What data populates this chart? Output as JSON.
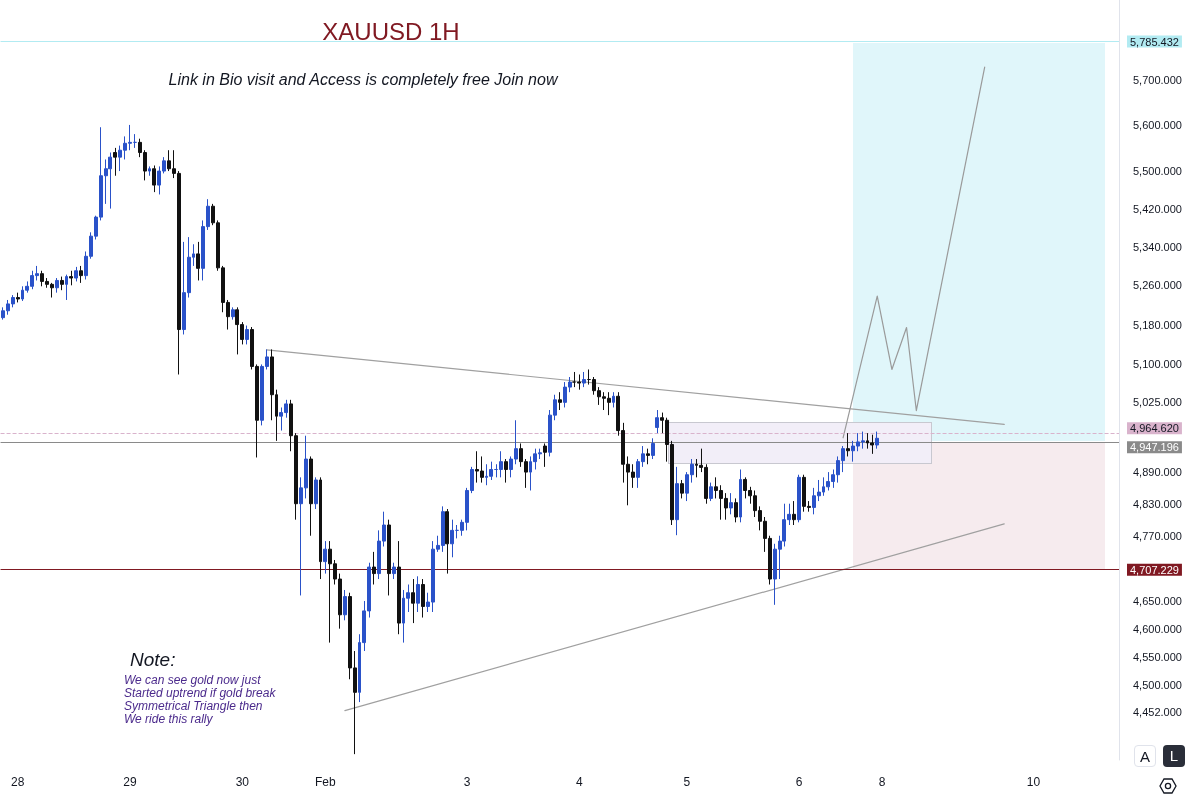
{
  "chart_data": {
    "type": "candlestick",
    "title": "XAUUSD 1H",
    "subtitle": "Link in Bio visit and Access is completely free Join now",
    "annotations": [
      "Note:",
      "We can see gold now just\nStarted uptrend if gold break\nSymmetrical Triangle then\nWe ride this rally",
      "A",
      "L"
    ],
    "categories": [
      null,
      null,
      null,
      "28",
      null,
      null,
      null,
      null,
      null,
      null,
      null,
      null,
      null,
      null,
      null,
      null,
      null,
      null,
      null,
      null,
      null,
      null,
      null,
      null,
      null,
      null,
      "29",
      null,
      null,
      null,
      null,
      null,
      null,
      null,
      null,
      null,
      null,
      null,
      null,
      null,
      null,
      null,
      null,
      null,
      null,
      null,
      null,
      null,
      null,
      "30",
      null,
      null,
      null,
      null,
      null,
      null,
      null,
      null,
      null,
      null,
      null,
      null,
      null,
      null,
      null,
      null,
      "Feb",
      null,
      null,
      null,
      null,
      null,
      null,
      null,
      null,
      null,
      null,
      null,
      null,
      null,
      null,
      null,
      null,
      null,
      null,
      null,
      null,
      null,
      null,
      null,
      null,
      null,
      null,
      null,
      null,
      "3",
      null,
      null,
      null,
      null,
      null,
      null,
      null,
      null,
      null,
      null,
      null,
      null,
      null,
      null,
      null,
      null,
      null,
      null,
      null,
      null,
      null,
      null,
      "4",
      null,
      null,
      null,
      null,
      null,
      null,
      null,
      null,
      null,
      null,
      null,
      null,
      null,
      null,
      null,
      null,
      null,
      null,
      null,
      null,
      null,
      "5",
      null,
      null,
      null,
      null,
      null,
      null,
      null,
      null,
      null,
      null,
      null,
      null,
      null,
      null,
      null,
      null,
      null,
      null,
      null,
      null,
      null,
      null,
      "6",
      null,
      null,
      null,
      null,
      null,
      null,
      null,
      null,
      null,
      null,
      null,
      null,
      null,
      null,
      null,
      null,
      "8",
      null,
      null,
      null,
      null,
      null,
      null,
      null,
      null,
      null,
      null,
      null,
      null,
      null,
      null,
      null,
      null,
      null,
      null,
      null,
      null,
      null,
      null,
      null,
      null,
      null,
      null,
      null,
      null,
      null,
      null,
      "10",
      null,
      null,
      null,
      null,
      null,
      null,
      null,
      null,
      null,
      null,
      null,
      null,
      null,
      null,
      null,
      null,
      null
    ],
    "ylim": [
      4370,
      5880
    ],
    "yticks": [
      {
        "value": 5700,
        "label": "5,700.000"
      },
      {
        "value": 5600,
        "label": "5,600.000"
      },
      {
        "value": 5500,
        "label": "5,500.000"
      },
      {
        "value": 5420,
        "label": "5,420.000"
      },
      {
        "value": 5340,
        "label": "5,340.000"
      },
      {
        "value": 5260,
        "label": "5,260.000"
      },
      {
        "value": 5180,
        "label": "5,180.000"
      },
      {
        "value": 5100,
        "label": "5,100.000"
      },
      {
        "value": 5025,
        "label": "5,025.000"
      },
      {
        "value": 4890,
        "label": "4,890.000"
      },
      {
        "value": 4830,
        "label": "4,830.000"
      },
      {
        "value": 4770,
        "label": "4,770.000"
      },
      {
        "value": 4650,
        "label": "4,650.000"
      },
      {
        "value": 4600,
        "label": "4,600.000"
      },
      {
        "value": 4550,
        "label": "4,550.000"
      },
      {
        "value": 4500,
        "label": "4,500.000"
      },
      {
        "value": 4452,
        "label": "4,452.000"
      }
    ],
    "log": "y",
    "grid": false,
    "marker": "none",
    "line_style": "solid",
    "ref_lines": [
      {
        "axis": "y",
        "value": 5785.432,
        "label": "5,785.432",
        "color": "#b2ebf2"
      },
      {
        "axis": "y",
        "value": 4964.62,
        "label": "4,964.620",
        "color": "#d9b3cc",
        "line_style": "dashed"
      },
      {
        "axis": "y",
        "value": 4947.196,
        "label": "4,947.196",
        "color": "#8a8a8a"
      },
      {
        "axis": "y",
        "value": 4707.229,
        "label": "4,707.229",
        "color": "#801922"
      }
    ],
    "series": [
      {
        "type": "line",
        "color": "#a0a0a0",
        "values": [
          null,
          null,
          null,
          null,
          null,
          null,
          null,
          null,
          null,
          null,
          null,
          null,
          null,
          null,
          null,
          null,
          null,
          null,
          null,
          null,
          null,
          null,
          null,
          null,
          null,
          null,
          null,
          null,
          null,
          null,
          null,
          null,
          null,
          null,
          null,
          null,
          null,
          null,
          null,
          null,
          null,
          null,
          null,
          null,
          null,
          null,
          null,
          null,
          null,
          null,
          null,
          null,
          null,
          null,
          5129,
          null,
          null,
          null,
          null,
          null,
          null,
          null,
          null,
          null,
          null,
          null,
          null,
          null,
          null,
          null,
          null,
          null,
          null,
          null,
          null,
          null,
          null,
          null,
          null,
          null,
          null,
          null,
          null,
          null,
          null,
          null,
          null,
          null,
          null,
          null,
          null,
          null,
          null,
          null,
          null,
          null,
          null,
          null,
          null,
          null,
          null,
          null,
          null,
          null,
          null,
          null,
          null,
          null,
          null,
          null,
          null,
          null,
          null,
          null,
          null,
          null,
          null,
          null,
          null,
          null,
          null,
          null,
          null,
          null,
          null,
          null,
          null,
          null,
          null,
          null,
          null,
          null,
          null,
          null,
          null,
          null,
          null,
          null,
          null,
          null,
          null,
          null,
          null,
          null,
          null,
          null,
          null,
          null,
          null,
          null,
          null,
          null,
          null,
          null,
          null,
          null,
          null,
          null,
          null,
          null,
          null,
          null,
          null,
          null,
          null,
          null,
          null,
          null,
          null,
          null,
          null,
          null,
          null,
          null,
          null,
          null,
          null,
          null,
          null,
          null,
          null,
          null,
          null,
          null,
          null,
          null,
          null,
          null,
          null,
          null,
          null,
          null,
          null,
          null,
          null,
          null,
          null,
          null,
          null,
          null,
          null,
          null,
          null,
          null,
          null,
          4982,
          null,
          null,
          null,
          null,
          null,
          null,
          null,
          null,
          null,
          null,
          null,
          null,
          null,
          null,
          null,
          null,
          null,
          null,
          null,
          null,
          null,
          null,
          null
        ]
      },
      {
        "type": "line",
        "color": "#a0a0a0",
        "values": [
          null,
          null,
          null,
          null,
          null,
          null,
          null,
          null,
          null,
          null,
          null,
          null,
          null,
          null,
          null,
          null,
          null,
          null,
          null,
          null,
          null,
          null,
          null,
          null,
          null,
          null,
          null,
          null,
          null,
          null,
          null,
          null,
          null,
          null,
          null,
          null,
          null,
          null,
          null,
          null,
          null,
          null,
          null,
          null,
          null,
          null,
          null,
          null,
          null,
          null,
          null,
          null,
          null,
          null,
          null,
          null,
          null,
          null,
          null,
          null,
          null,
          null,
          null,
          null,
          null,
          null,
          null,
          null,
          null,
          null,
          4455,
          null,
          null,
          null,
          null,
          null,
          null,
          null,
          null,
          null,
          null,
          null,
          null,
          null,
          null,
          null,
          null,
          null,
          null,
          null,
          null,
          null,
          null,
          null,
          null,
          null,
          null,
          null,
          null,
          null,
          null,
          null,
          null,
          null,
          null,
          null,
          null,
          null,
          null,
          null,
          null,
          null,
          null,
          null,
          null,
          null,
          null,
          null,
          null,
          null,
          null,
          null,
          null,
          null,
          null,
          null,
          null,
          null,
          null,
          null,
          null,
          null,
          null,
          null,
          null,
          null,
          null,
          null,
          null,
          null,
          null,
          null,
          null,
          null,
          null,
          null,
          null,
          null,
          null,
          null,
          null,
          null,
          null,
          null,
          null,
          null,
          null,
          null,
          null,
          null,
          null,
          null,
          null,
          null,
          null,
          null,
          null,
          null,
          null,
          null,
          null,
          null,
          null,
          null,
          null,
          null,
          null,
          null,
          null,
          null,
          null,
          null,
          null,
          null,
          null,
          null,
          null,
          null,
          null,
          null,
          null,
          null,
          null,
          null,
          null,
          null,
          null,
          null,
          null,
          null,
          null,
          null,
          null,
          null,
          null,
          4792,
          null,
          null,
          null,
          null,
          null,
          null,
          null,
          null,
          null,
          null,
          null,
          null,
          null,
          null,
          null,
          null,
          null,
          null,
          null,
          null,
          null,
          null,
          null
        ]
      },
      {
        "type": "line",
        "color": "#9a9a9a",
        "values": [
          null,
          null,
          null,
          null,
          null,
          null,
          null,
          null,
          null,
          null,
          null,
          null,
          null,
          null,
          null,
          null,
          null,
          null,
          null,
          null,
          null,
          null,
          null,
          null,
          null,
          null,
          null,
          null,
          null,
          null,
          null,
          null,
          null,
          null,
          null,
          null,
          null,
          null,
          null,
          null,
          null,
          null,
          null,
          null,
          null,
          null,
          null,
          null,
          null,
          null,
          null,
          null,
          null,
          null,
          null,
          null,
          null,
          null,
          null,
          null,
          null,
          null,
          null,
          null,
          null,
          null,
          null,
          null,
          null,
          null,
          null,
          null,
          null,
          null,
          null,
          null,
          null,
          null,
          null,
          null,
          null,
          null,
          null,
          null,
          null,
          null,
          null,
          null,
          null,
          null,
          null,
          null,
          null,
          null,
          null,
          null,
          null,
          null,
          null,
          null,
          null,
          null,
          null,
          null,
          null,
          null,
          null,
          null,
          null,
          null,
          null,
          null,
          null,
          null,
          null,
          null,
          null,
          null,
          null,
          null,
          null,
          null,
          null,
          null,
          null,
          null,
          null,
          null,
          null,
          null,
          null,
          null,
          null,
          null,
          null,
          null,
          null,
          null,
          null,
          null,
          null,
          null,
          null,
          null,
          null,
          null,
          null,
          null,
          null,
          null,
          null,
          null,
          null,
          null,
          null,
          null,
          null,
          null,
          null,
          null,
          null,
          null,
          null,
          null,
          null,
          null,
          null,
          null,
          null,
          null,
          null,
          null,
          4956,
          null,
          null,
          null,
          null,
          null,
          null,
          5238,
          null,
          null,
          5090,
          null,
          null,
          5174,
          null,
          5009,
          null,
          null,
          null,
          null,
          null,
          null,
          null,
          null,
          null,
          null,
          null,
          null,
          null,
          5728,
          null,
          null,
          null,
          null,
          null,
          null,
          null,
          null,
          null,
          null,
          null,
          null,
          null,
          null,
          null,
          null,
          null,
          null,
          null,
          null,
          null,
          null,
          null,
          null,
          null,
          null,
          null
        ]
      },
      {
        "type": "candlestick",
        "ohlc": [
          [
            5194,
            5215,
            5190,
            5208
          ],
          [
            5208,
            5230,
            5200,
            5222
          ],
          [
            5222,
            5240,
            5215,
            5235
          ],
          [
            5235,
            5245,
            5225,
            5232
          ],
          [
            5232,
            5258,
            5228,
            5250
          ],
          [
            5250,
            5268,
            5245,
            5258
          ],
          [
            5258,
            5290,
            5252,
            5280
          ],
          [
            5280,
            5300,
            5270,
            5284
          ],
          [
            5284,
            5290,
            5258,
            5268
          ],
          [
            5268,
            5275,
            5255,
            5262
          ],
          [
            5262,
            5265,
            5235,
            5255
          ],
          [
            5255,
            5275,
            5245,
            5270
          ],
          [
            5270,
            5278,
            5250,
            5262
          ],
          [
            5262,
            5282,
            5230,
            5278
          ],
          [
            5278,
            5290,
            5260,
            5275
          ],
          [
            5275,
            5298,
            5268,
            5290
          ],
          [
            5290,
            5300,
            5265,
            5280
          ],
          [
            5280,
            5330,
            5272,
            5320
          ],
          [
            5320,
            5370,
            5315,
            5362
          ],
          [
            5362,
            5405,
            5355,
            5402
          ],
          [
            5402,
            5595,
            5395,
            5490
          ],
          [
            5490,
            5525,
            5430,
            5505
          ],
          [
            5505,
            5540,
            5420,
            5530
          ],
          [
            5540,
            5550,
            5490,
            5530
          ],
          [
            5530,
            5555,
            5500,
            5545
          ],
          [
            5545,
            5575,
            5525,
            5560
          ],
          [
            5560,
            5600,
            5545,
            5562
          ],
          [
            5562,
            5580,
            5550,
            5562
          ],
          [
            5562,
            5570,
            5530,
            5540
          ],
          [
            5540,
            5545,
            5480,
            5500
          ],
          [
            5500,
            5510,
            5490,
            5505
          ],
          [
            5505,
            5512,
            5455,
            5470
          ],
          [
            5470,
            5510,
            5450,
            5500
          ],
          [
            5500,
            5530,
            5495,
            5522
          ],
          [
            5522,
            5545,
            5500,
            5505
          ],
          [
            5505,
            5545,
            5485,
            5495
          ],
          [
            5495,
            5500,
            5080,
            5170
          ],
          [
            5170,
            5350,
            5160,
            5245
          ],
          [
            5245,
            5360,
            5235,
            5318
          ],
          [
            5318,
            5345,
            5300,
            5325
          ],
          [
            5325,
            5350,
            5270,
            5295
          ],
          [
            5295,
            5395,
            5270,
            5382
          ],
          [
            5382,
            5440,
            5375,
            5425
          ],
          [
            5425,
            5430,
            5385,
            5390
          ],
          [
            5390,
            5395,
            5290,
            5296
          ],
          [
            5296,
            5300,
            5205,
            5225
          ],
          [
            5225,
            5230,
            5170,
            5196
          ],
          [
            5196,
            5215,
            5190,
            5210
          ],
          [
            5210,
            5215,
            5120,
            5180
          ],
          [
            5180,
            5185,
            5140,
            5150
          ],
          [
            5150,
            5178,
            5140,
            5170
          ],
          [
            5170,
            5175,
            5090,
            5096
          ],
          [
            5096,
            5100,
            4918,
            4990
          ],
          [
            4990,
            5100,
            4980,
            5096
          ],
          [
            5096,
            5130,
            5090,
            5115
          ],
          [
            5115,
            5130,
            4990,
            5040
          ],
          [
            5040,
            5050,
            4950,
            4998
          ],
          [
            4998,
            5015,
            4970,
            5005
          ],
          [
            5005,
            5030,
            4995,
            5022
          ],
          [
            5022,
            5030,
            4930,
            4960
          ],
          [
            4960,
            4965,
            4800,
            4830
          ],
          [
            4830,
            4880,
            4660,
            4860
          ],
          [
            4860,
            4960,
            4840,
            4915
          ],
          [
            4915,
            4920,
            4770,
            4830
          ],
          [
            4830,
            4880,
            4820,
            4875
          ],
          [
            4875,
            4880,
            4690,
            4722
          ],
          [
            4722,
            4760,
            4700,
            4745
          ],
          [
            4745,
            4760,
            4575,
            4718
          ],
          [
            4718,
            4725,
            4680,
            4690
          ],
          [
            4690,
            4700,
            4600,
            4625
          ],
          [
            4625,
            4670,
            4615,
            4658
          ],
          [
            4658,
            4665,
            4510,
            4530
          ],
          [
            4530,
            4560,
            4380,
            4487
          ],
          [
            4487,
            4590,
            4470,
            4575
          ],
          [
            4575,
            4650,
            4560,
            4632
          ],
          [
            4632,
            4720,
            4620,
            4712
          ],
          [
            4712,
            4740,
            4680,
            4700
          ],
          [
            4700,
            4780,
            4690,
            4760
          ],
          [
            4760,
            4815,
            4750,
            4790
          ],
          [
            4790,
            4800,
            4660,
            4700
          ],
          [
            4700,
            4720,
            4690,
            4712
          ],
          [
            4712,
            4760,
            4590,
            4610
          ],
          [
            4610,
            4670,
            4575,
            4655
          ],
          [
            4655,
            4680,
            4630,
            4665
          ],
          [
            4665,
            4690,
            4610,
            4646
          ],
          [
            4646,
            4695,
            4630,
            4680
          ],
          [
            4680,
            4690,
            4620,
            4640
          ],
          [
            4640,
            4665,
            4630,
            4648
          ],
          [
            4648,
            4760,
            4630,
            4745
          ],
          [
            4745,
            4770,
            4740,
            4752
          ],
          [
            4752,
            4825,
            4740,
            4815
          ],
          [
            4815,
            4820,
            4700,
            4755
          ],
          [
            4755,
            4800,
            4730,
            4780
          ],
          [
            4780,
            4790,
            4765,
            4780
          ],
          [
            4780,
            4800,
            4770,
            4795
          ],
          [
            4795,
            4860,
            4780,
            4855
          ],
          [
            4855,
            4900,
            4850,
            4895
          ],
          [
            4895,
            4930,
            4870,
            4892
          ],
          [
            4892,
            4920,
            4870,
            4880
          ],
          [
            4880,
            4905,
            4865,
            4882
          ],
          [
            4882,
            4910,
            4875,
            4895
          ],
          [
            4895,
            4905,
            4880,
            4895
          ],
          [
            4895,
            4930,
            4880,
            4910
          ],
          [
            4910,
            4915,
            4870,
            4895
          ],
          [
            4895,
            4920,
            4880,
            4915
          ],
          [
            4915,
            4990,
            4905,
            4935
          ],
          [
            4935,
            4945,
            4900,
            4910
          ],
          [
            4910,
            4915,
            4860,
            4890
          ],
          [
            4890,
            4920,
            4855,
            4910
          ],
          [
            4910,
            4935,
            4895,
            4925
          ],
          [
            4925,
            4935,
            4915,
            4927
          ],
          [
            4940,
            4945,
            4900,
            4928
          ],
          [
            4928,
            5010,
            4920,
            5000
          ],
          [
            5000,
            5040,
            4990,
            5030
          ],
          [
            5030,
            5045,
            5010,
            5025
          ],
          [
            5025,
            5065,
            5015,
            5055
          ],
          [
            5055,
            5075,
            5045,
            5065
          ],
          [
            5065,
            5085,
            5055,
            5065
          ],
          [
            5065,
            5080,
            5050,
            5063
          ],
          [
            5063,
            5085,
            5055,
            5070
          ],
          [
            5070,
            5090,
            5060,
            5070
          ],
          [
            5070,
            5075,
            5040,
            5048
          ],
          [
            5048,
            5055,
            5020,
            5036
          ],
          [
            5036,
            5045,
            5010,
            5033
          ],
          [
            5033,
            5045,
            5000,
            5025
          ],
          [
            5025,
            5045,
            5015,
            5037
          ],
          [
            5037,
            5045,
            4960,
            4970
          ],
          [
            4970,
            4985,
            4870,
            4905
          ],
          [
            4905,
            4920,
            4827,
            4890
          ],
          [
            4890,
            4905,
            4860,
            4880
          ],
          [
            4880,
            4915,
            4860,
            4910
          ],
          [
            4910,
            4940,
            4900,
            4925
          ],
          [
            4925,
            4935,
            4905,
            4922
          ],
          [
            4922,
            4955,
            4915,
            4945
          ],
          [
            4976,
            5010,
            4965,
            4995
          ],
          [
            4995,
            5005,
            4965,
            4990
          ],
          [
            4990,
            4995,
            4910,
            4943
          ],
          [
            4943,
            4950,
            4790,
            4800
          ],
          [
            4800,
            4900,
            4771,
            4868
          ],
          [
            4868,
            4875,
            4840,
            4850
          ],
          [
            4850,
            4890,
            4835,
            4885
          ],
          [
            4885,
            4915,
            4870,
            4905
          ],
          [
            4905,
            4915,
            4880,
            4903
          ],
          [
            4903,
            4935,
            4890,
            4899
          ],
          [
            4899,
            4905,
            4830,
            4840
          ],
          [
            4840,
            4870,
            4835,
            4862
          ],
          [
            4862,
            4880,
            4840,
            4855
          ],
          [
            4855,
            4865,
            4800,
            4840
          ],
          [
            4840,
            4850,
            4800,
            4822
          ],
          [
            4822,
            4850,
            4810,
            4832
          ],
          [
            4832,
            4840,
            4795,
            4805
          ],
          [
            4805,
            4895,
            4795,
            4876
          ],
          [
            4876,
            4880,
            4840,
            4855
          ],
          [
            4855,
            4862,
            4830,
            4845
          ],
          [
            4845,
            4855,
            4805,
            4817
          ],
          [
            4817,
            4825,
            4780,
            4797
          ],
          [
            4797,
            4805,
            4740,
            4765
          ],
          [
            4765,
            4770,
            4680,
            4690
          ],
          [
            4690,
            4755,
            4643,
            4745
          ],
          [
            4745,
            4770,
            4690,
            4760
          ],
          [
            4760,
            4830,
            4750,
            4800
          ],
          [
            4800,
            4830,
            4790,
            4810
          ],
          [
            4810,
            4835,
            4790,
            4800
          ],
          [
            4800,
            4885,
            4795,
            4880
          ],
          [
            4880,
            4885,
            4815,
            4825
          ],
          [
            4825,
            4835,
            4815,
            4823
          ],
          [
            4823,
            4860,
            4810,
            4845
          ],
          [
            4845,
            4875,
            4835,
            4852
          ],
          [
            4852,
            4880,
            4845,
            4862
          ],
          [
            4862,
            4890,
            4855,
            4872
          ],
          [
            4872,
            4895,
            4860,
            4885
          ],
          [
            4885,
            4920,
            4870,
            4912
          ],
          [
            4912,
            4940,
            4890,
            4935
          ],
          [
            4935,
            4965,
            4920,
            4931
          ],
          [
            4931,
            4950,
            4910,
            4940
          ],
          [
            4940,
            4965,
            4930,
            4948
          ],
          [
            4948,
            4968,
            4935,
            4950
          ],
          [
            4950,
            4965,
            4935,
            4946
          ],
          [
            4946,
            4962,
            4925,
            4942
          ],
          [
            4942,
            4968,
            4935,
            4955
          ],
          null,
          null,
          null,
          null,
          null,
          null,
          null,
          null,
          null,
          null,
          null,
          null,
          null,
          null,
          null,
          null,
          null,
          null,
          null,
          null,
          null,
          null,
          null,
          null,
          null,
          null,
          null,
          null,
          null,
          null,
          null,
          null,
          null,
          null,
          null,
          null,
          null,
          null,
          null,
          null,
          null,
          null,
          null,
          null,
          null,
          null,
          null,
          null,
          null
        ],
        "colors": [
          "#2a52c9",
          "#2a52c9",
          "#2a52c9",
          "#111111",
          "#2a52c9",
          "#2a52c9",
          "#2a52c9",
          "#2a52c9",
          "#111111",
          "#111111",
          "#111111",
          "#2a52c9",
          "#111111",
          "#2a52c9",
          "#111111",
          "#2a52c9",
          "#111111",
          "#2a52c9",
          "#2a52c9",
          "#2a52c9",
          "#2a52c9",
          "#2a52c9",
          "#2a52c9",
          "#111111",
          "#2a52c9",
          "#2a52c9",
          "#2a52c9",
          "#2a52c9",
          "#111111",
          "#111111",
          "#2a52c9",
          "#111111",
          "#2a52c9",
          "#2a52c9",
          "#111111",
          "#111111",
          "#111111",
          "#2a52c9",
          "#2a52c9",
          "#2a52c9",
          "#111111",
          "#2a52c9",
          "#2a52c9",
          "#111111",
          "#111111",
          "#111111",
          "#111111",
          "#2a52c9",
          "#111111",
          "#111111",
          "#2a52c9",
          "#111111",
          "#111111",
          "#2a52c9",
          "#2a52c9",
          "#111111",
          "#111111",
          "#2a52c9",
          "#2a52c9",
          "#111111",
          "#111111",
          "#2a52c9",
          "#2a52c9",
          "#111111",
          "#2a52c9",
          "#111111",
          "#2a52c9",
          "#111111",
          "#111111",
          "#111111",
          "#2a52c9",
          "#111111",
          "#111111",
          "#2a52c9",
          "#2a52c9",
          "#2a52c9",
          "#111111",
          "#2a52c9",
          "#2a52c9",
          "#111111",
          "#2a52c9",
          "#111111",
          "#2a52c9",
          "#2a52c9",
          "#111111",
          "#2a52c9",
          "#111111",
          "#2a52c9",
          "#2a52c9",
          "#2a52c9",
          "#2a52c9",
          "#111111",
          "#2a52c9",
          "#2a52c9",
          "#2a52c9",
          "#2a52c9",
          "#2a52c9",
          "#111111",
          "#111111",
          "#2a52c9",
          "#2a52c9",
          "#2a52c9",
          "#2a52c9",
          "#111111",
          "#2a52c9",
          "#2a52c9",
          "#111111",
          "#111111",
          "#2a52c9",
          "#2a52c9",
          "#2a52c9",
          "#111111",
          "#2a52c9",
          "#2a52c9",
          "#111111",
          "#2a52c9",
          "#2a52c9",
          "#111111",
          "#111111",
          "#2a52c9",
          "#111111",
          "#111111",
          "#111111",
          "#111111",
          "#111111",
          "#2a52c9",
          "#111111",
          "#111111",
          "#111111",
          "#111111",
          "#2a52c9",
          "#2a52c9",
          "#111111",
          "#2a52c9",
          "#2a52c9",
          "#111111",
          "#111111",
          "#111111",
          "#2a52c9",
          "#111111",
          "#2a52c9",
          "#2a52c9",
          "#111111",
          "#111111",
          "#111111",
          "#2a52c9",
          "#111111",
          "#111111",
          "#111111",
          "#2a52c9",
          "#111111",
          "#2a52c9",
          "#111111",
          "#111111",
          "#111111",
          "#111111",
          "#111111",
          "#111111",
          "#2a52c9",
          "#2a52c9",
          "#2a52c9",
          "#2a52c9",
          "#111111",
          "#2a52c9",
          "#111111",
          "#111111",
          "#2a52c9",
          "#2a52c9",
          "#2a52c9",
          "#2a52c9",
          "#2a52c9",
          "#2a52c9",
          "#2a52c9",
          "#111111",
          "#2a52c9",
          "#2a52c9",
          "#2a52c9",
          "#111111",
          "#111111",
          "#2a52c9",
          null,
          null,
          null,
          null,
          null,
          null,
          null,
          null,
          null,
          null,
          null,
          null,
          null,
          null,
          null,
          null,
          null,
          null,
          null,
          null,
          null,
          null,
          null,
          null,
          null,
          null,
          null,
          null,
          null,
          null,
          null,
          null,
          null,
          null,
          null,
          null,
          null,
          null,
          null,
          null,
          null,
          null,
          null,
          null,
          null,
          null,
          null,
          null,
          null
        ]
      }
    ]
  }
}
